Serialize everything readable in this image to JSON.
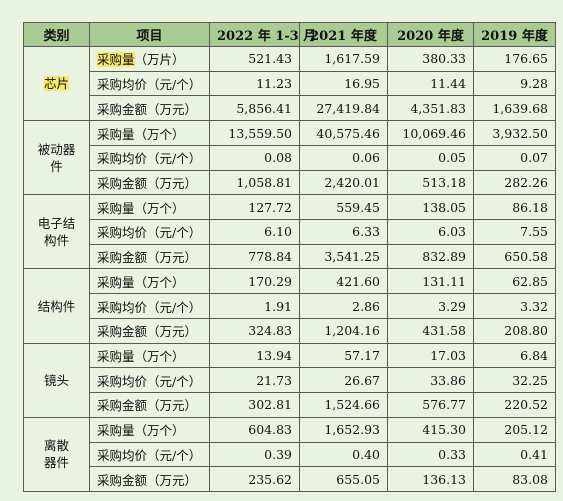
{
  "header": [
    "类别",
    "项目",
    "2022 年 1-3 月",
    "2021 年度",
    "2020 年度",
    "2019 年度"
  ],
  "groups": [
    {
      "category": "芯片",
      "rows": [
        {
          "item": "采购量",
          "unit": "（万片）",
          "values": [
            "521.43",
            "1,617.59",
            "380.33",
            "176.65"
          ]
        },
        {
          "item": "采购均价（元/个）",
          "values": [
            "11.23",
            "16.95",
            "11.44",
            "9.28"
          ]
        },
        {
          "item": "采购金额（万元）",
          "values": [
            "5,856.41",
            "27,419.84",
            "4,351.83",
            "1,639.68"
          ]
        }
      ]
    },
    {
      "category": "被动器件",
      "rows": [
        {
          "item": "采购量（万个）",
          "values": [
            "13,559.50",
            "40,575.46",
            "10,069.46",
            "3,932.50"
          ]
        },
        {
          "item": "采购均价（元/个）",
          "values": [
            "0.08",
            "0.06",
            "0.05",
            "0.07"
          ]
        },
        {
          "item": "采购金额（万元）",
          "values": [
            "1,058.81",
            "2,420.01",
            "513.18",
            "282.26"
          ]
        }
      ]
    },
    {
      "category": "电子结构件",
      "rows": [
        {
          "item": "采购量（万个）",
          "values": [
            "127.72",
            "559.45",
            "138.05",
            "86.18"
          ]
        },
        {
          "item": "采购均价（元/个）",
          "values": [
            "6.10",
            "6.33",
            "6.03",
            "7.55"
          ]
        },
        {
          "item": "采购金额（万元）",
          "values": [
            "778.84",
            "3,541.25",
            "832.89",
            "650.58"
          ]
        }
      ]
    },
    {
      "category": "结构件",
      "rows": [
        {
          "item": "采购量（万个）",
          "values": [
            "170.29",
            "421.60",
            "131.11",
            "62.85"
          ]
        },
        {
          "item": "采购均价（元/个）",
          "values": [
            "1.91",
            "2.86",
            "3.29",
            "3.32"
          ]
        },
        {
          "item": "采购金额（万元）",
          "values": [
            "324.83",
            "1,204.16",
            "431.58",
            "208.80"
          ]
        }
      ]
    },
    {
      "category": "镜头",
      "rows": [
        {
          "item": "采购量（万个）",
          "values": [
            "13.94",
            "57.17",
            "17.03",
            "6.84"
          ]
        },
        {
          "item": "采购均价（元/个）",
          "values": [
            "21.73",
            "26.67",
            "33.86",
            "32.25"
          ]
        },
        {
          "item": "采购金额（万元）",
          "values": [
            "302.81",
            "1,524.66",
            "576.77",
            "220.52"
          ]
        }
      ]
    },
    {
      "category": "离散器件",
      "rows": [
        {
          "item": "采购量（万个）",
          "values": [
            "604.83",
            "1,652.93",
            "415.30",
            "205.12"
          ]
        },
        {
          "item": "采购均价（元/个）",
          "values": [
            "0.39",
            "0.40",
            "0.33",
            "0.41"
          ]
        },
        {
          "item": "采购金额（万元）",
          "values": [
            "235.62",
            "655.05",
            "136.13",
            "83.08"
          ]
        }
      ]
    }
  ],
  "colors": {
    "header_bg": "#a9cc94",
    "body_bg": "#eaf3e0",
    "highlight": "#f2ea6c"
  }
}
